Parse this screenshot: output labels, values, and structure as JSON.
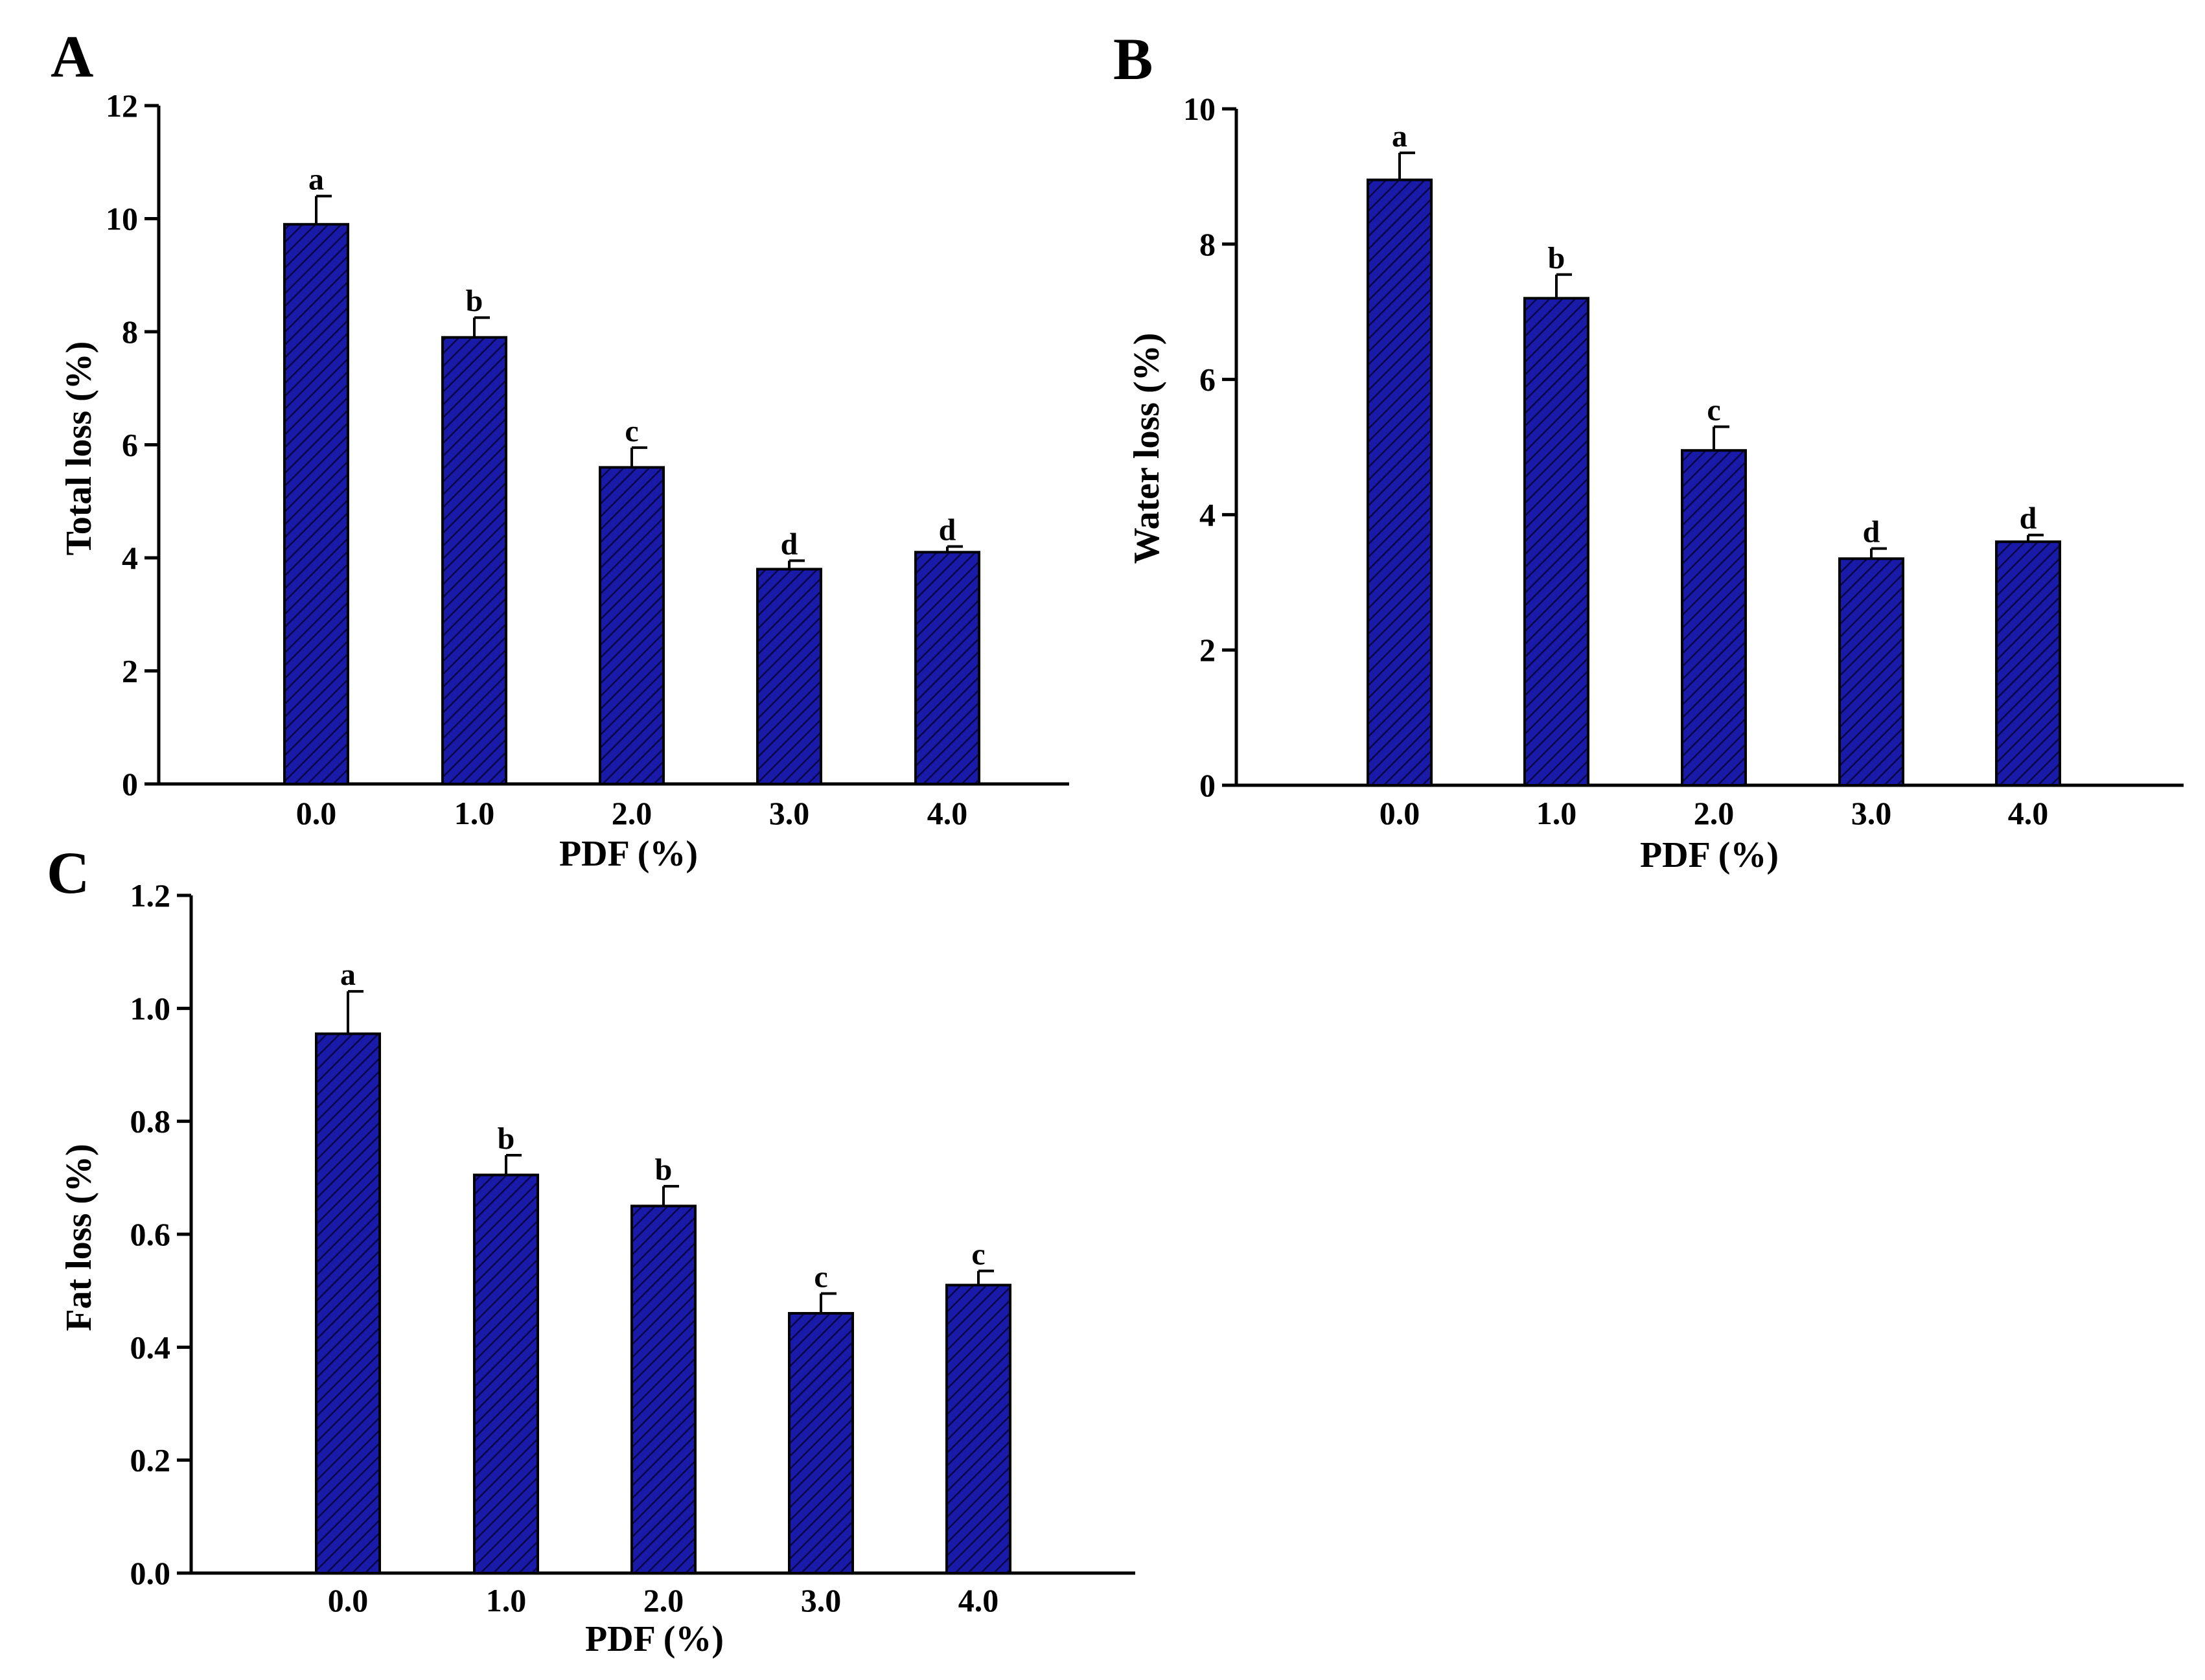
{
  "figure": {
    "bar_color": "#1a1aa8",
    "bar_stroke": "#000000",
    "hatch_color": "#07074a",
    "axis_color": "#000000"
  },
  "chart_data": [
    {
      "panel": "A",
      "type": "bar",
      "title": "",
      "xlabel": "PDF (%)",
      "ylabel": "Total loss (%)",
      "categories": [
        "0.0",
        "1.0",
        "2.0",
        "3.0",
        "4.0"
      ],
      "values": [
        9.9,
        7.9,
        5.6,
        3.8,
        4.1
      ],
      "errors": [
        0.5,
        0.35,
        0.35,
        0.15,
        0.1
      ],
      "significance": [
        "a",
        "b",
        "c",
        "d",
        "d"
      ],
      "ylim": [
        0,
        12
      ],
      "yticks": [
        0,
        2,
        4,
        6,
        8,
        10,
        12
      ],
      "ytick_labels": [
        "0",
        "2",
        "4",
        "6",
        "8",
        "10",
        "12"
      ],
      "grid": false
    },
    {
      "panel": "B",
      "type": "bar",
      "title": "",
      "xlabel": "PDF (%)",
      "ylabel": "Water loss (%)",
      "categories": [
        "0.0",
        "1.0",
        "2.0",
        "3.0",
        "4.0"
      ],
      "values": [
        8.95,
        7.2,
        4.95,
        3.35,
        3.6
      ],
      "errors": [
        0.4,
        0.35,
        0.35,
        0.15,
        0.1
      ],
      "significance": [
        "a",
        "b",
        "c",
        "d",
        "d"
      ],
      "ylim": [
        0,
        10
      ],
      "yticks": [
        0,
        2,
        4,
        6,
        8,
        10
      ],
      "ytick_labels": [
        "0",
        "2",
        "4",
        "6",
        "8",
        "10"
      ],
      "grid": false
    },
    {
      "panel": "C",
      "type": "bar",
      "title": "",
      "xlabel": "PDF (%)",
      "ylabel": "Fat loss (%)",
      "categories": [
        "0.0",
        "1.0",
        "2.0",
        "3.0",
        "4.0"
      ],
      "values": [
        0.955,
        0.705,
        0.65,
        0.46,
        0.51
      ],
      "errors": [
        0.075,
        0.035,
        0.035,
        0.035,
        0.025
      ],
      "significance": [
        "a",
        "b",
        "b",
        "c",
        "c"
      ],
      "ylim": [
        0,
        1.2
      ],
      "yticks": [
        0,
        0.2,
        0.4,
        0.6,
        0.8,
        1.0,
        1.2
      ],
      "ytick_labels": [
        "0.0",
        "0.2",
        "0.4",
        "0.6",
        "0.8",
        "1.0",
        "1.2"
      ],
      "grid": false
    }
  ]
}
